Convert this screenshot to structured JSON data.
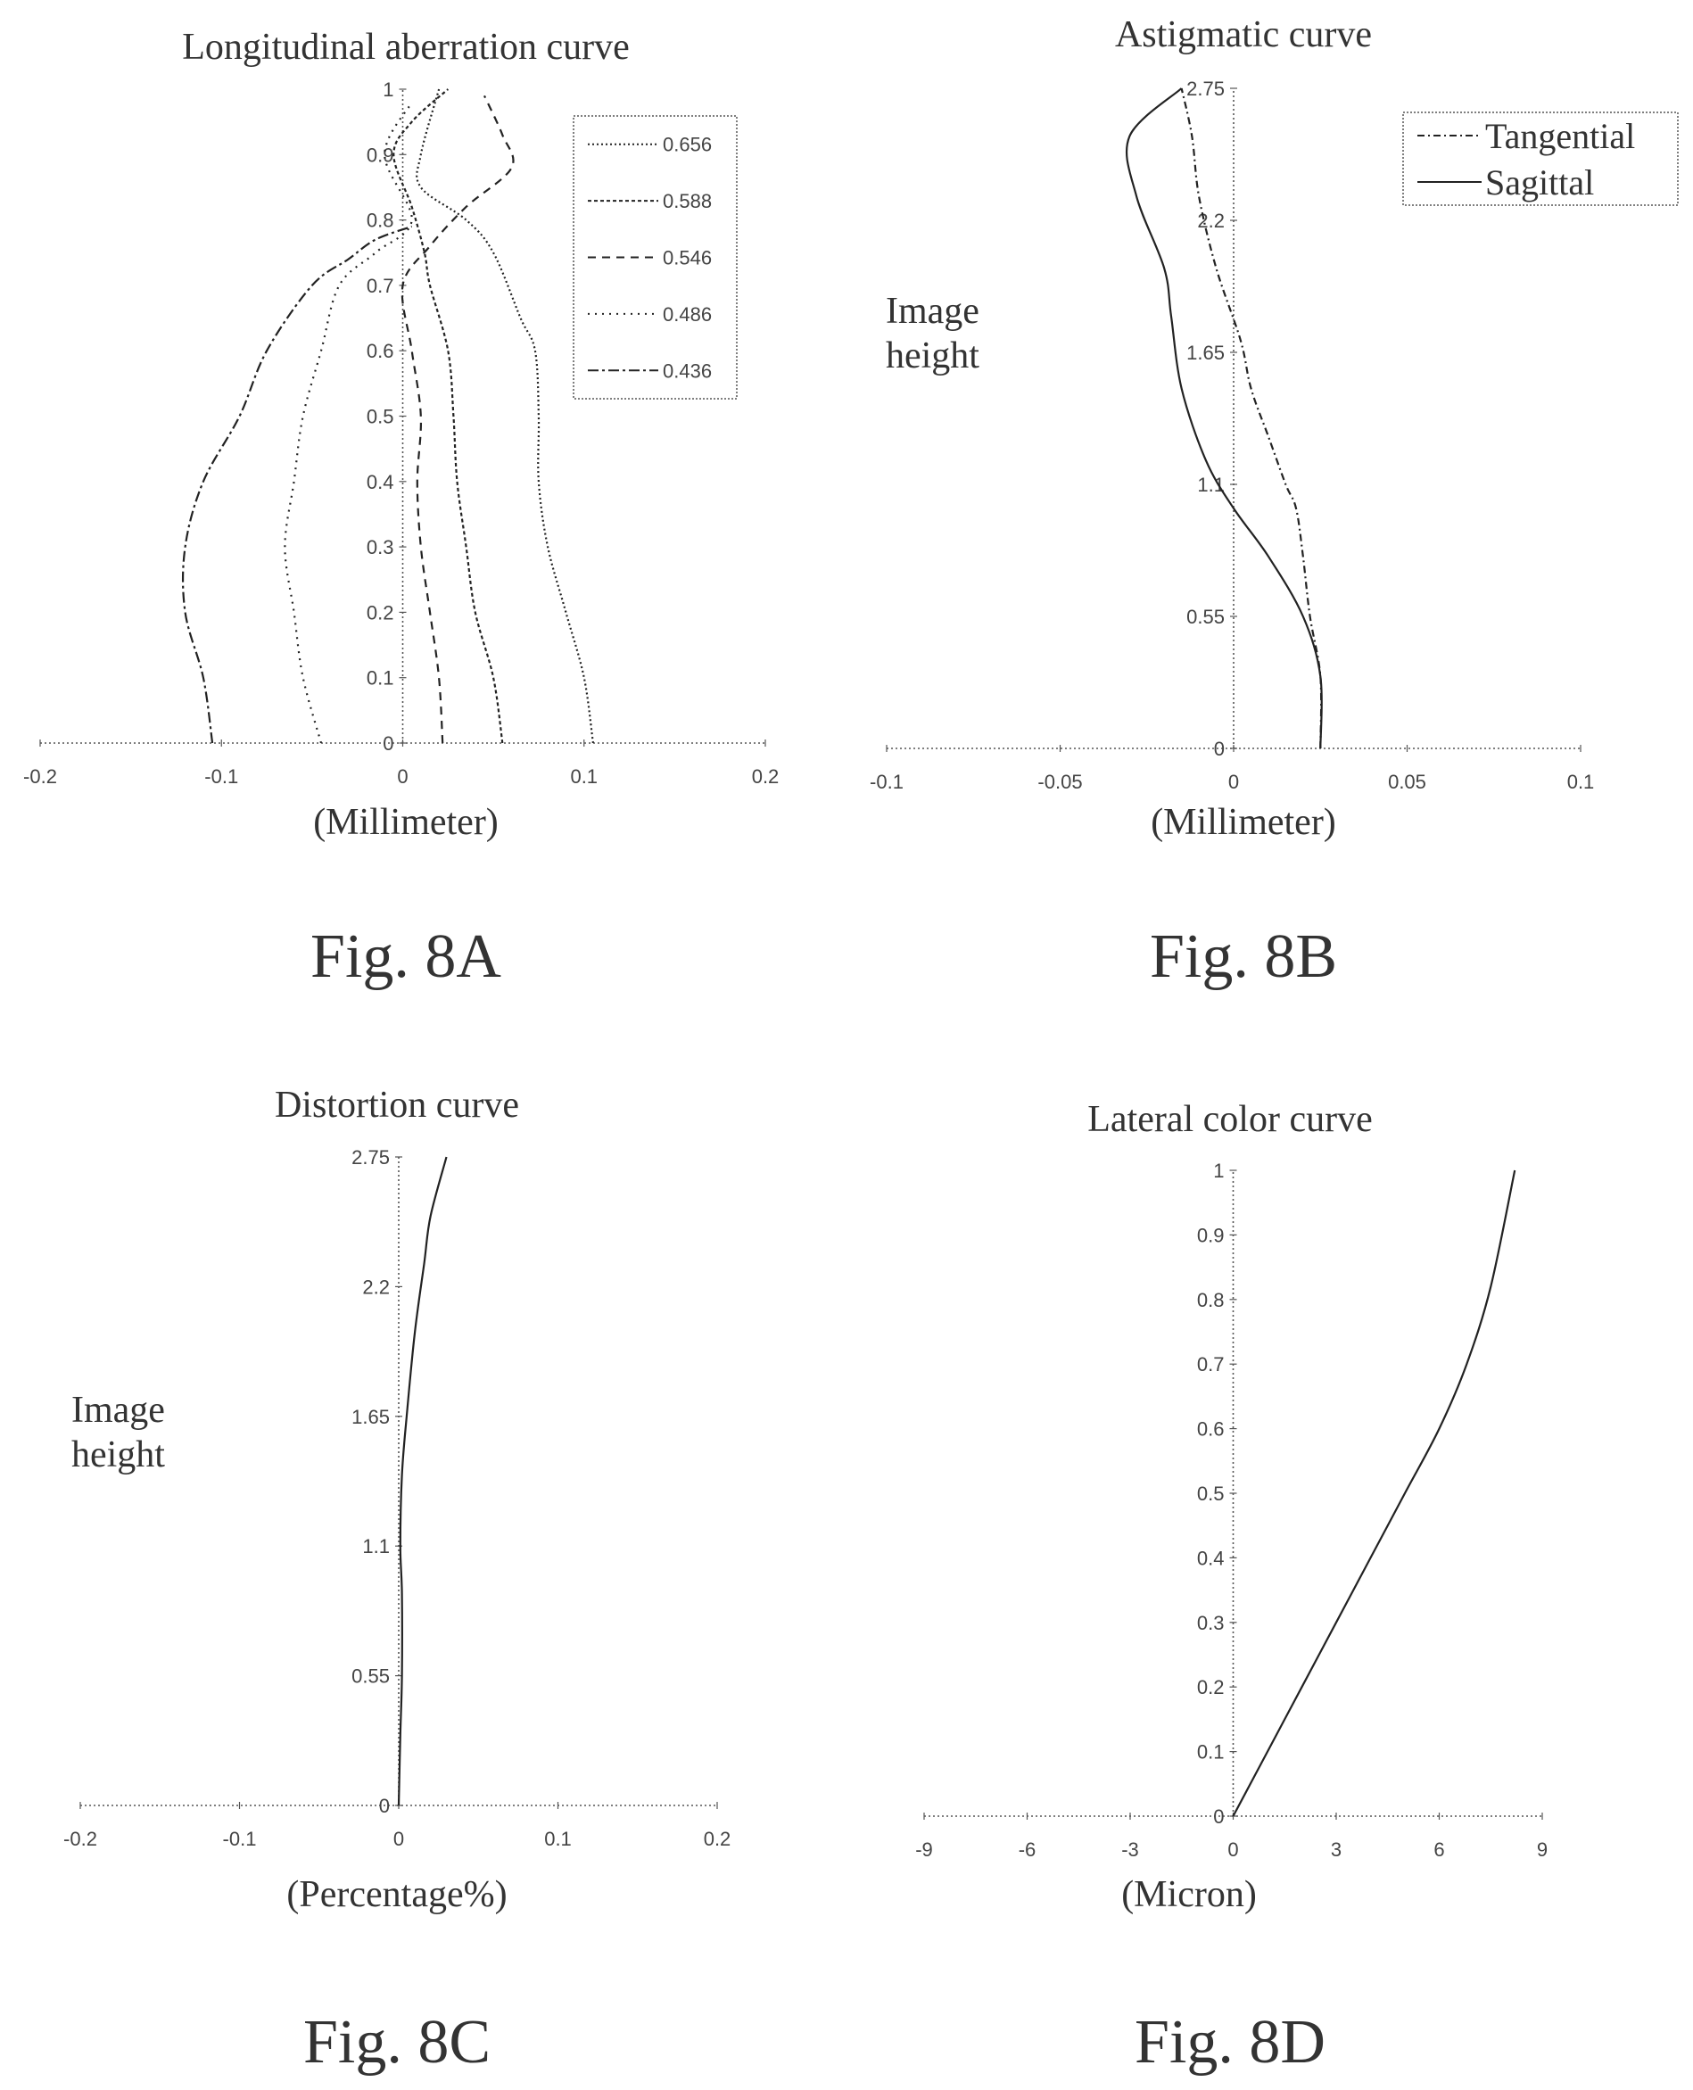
{
  "chart_data": [
    {
      "figure": "Fig. 8A",
      "type": "line",
      "title": "Longitudinal aberration curve",
      "xlabel": "(Millimeter)",
      "ylabel": "",
      "xlim": [
        -0.2,
        0.2
      ],
      "ylim": [
        0,
        1
      ],
      "xticks": [
        "-0.2",
        "-0.1",
        "0",
        "0.1",
        "0.2"
      ],
      "yticks": [
        "0",
        "0.1",
        "0.2",
        "0.3",
        "0.4",
        "0.5",
        "0.6",
        "0.7",
        "0.8",
        "0.9",
        "1"
      ],
      "legend_position": "top-right",
      "series": [
        {
          "name": "0.656",
          "dash": "2 3",
          "x": [
            0.105,
            0.1,
            0.09,
            0.08,
            0.075,
            0.075,
            0.073,
            0.065,
            0.05,
            0.035,
            0.01,
            0.01,
            0.02
          ],
          "y": [
            0,
            0.1,
            0.2,
            0.3,
            0.4,
            0.5,
            0.6,
            0.65,
            0.75,
            0.8,
            0.85,
            0.9,
            1
          ]
        },
        {
          "name": "0.588",
          "dash": "4 3",
          "x": [
            0.055,
            0.05,
            0.04,
            0.035,
            0.03,
            0.028,
            0.025,
            0.015,
            0.012,
            0.005,
            -0.005,
            0.005,
            0.025
          ],
          "y": [
            0,
            0.1,
            0.2,
            0.3,
            0.4,
            0.5,
            0.6,
            0.7,
            0.75,
            0.82,
            0.9,
            0.95,
            1
          ]
        },
        {
          "name": "0.546",
          "dash": "9 7",
          "x": [
            0.022,
            0.02,
            0.015,
            0.01,
            0.008,
            0.01,
            0.005,
            0.0,
            0.015,
            0.035,
            0.06,
            0.055,
            0.045
          ],
          "y": [
            0,
            0.1,
            0.2,
            0.3,
            0.4,
            0.5,
            0.6,
            0.7,
            0.76,
            0.82,
            0.88,
            0.93,
            0.99
          ]
        },
        {
          "name": "0.486",
          "dash": "2 6",
          "x": [
            -0.045,
            -0.055,
            -0.06,
            -0.065,
            -0.06,
            -0.055,
            -0.045,
            -0.035,
            -0.015,
            0.005,
            -0.01,
            0.005
          ],
          "y": [
            0,
            0.1,
            0.2,
            0.3,
            0.4,
            0.5,
            0.6,
            0.7,
            0.75,
            0.8,
            0.9,
            0.98
          ]
        },
        {
          "name": "0.436",
          "dash": "12 4 3 4",
          "x": [
            -0.105,
            -0.11,
            -0.12,
            -0.12,
            -0.11,
            -0.09,
            -0.075,
            -0.05,
            -0.03,
            -0.015,
            0.005
          ],
          "y": [
            0,
            0.1,
            0.2,
            0.3,
            0.4,
            0.5,
            0.6,
            0.7,
            0.74,
            0.77,
            0.79
          ]
        }
      ]
    },
    {
      "figure": "Fig. 8B",
      "type": "line",
      "title": "Astigmatic curve",
      "xlabel": "(Millimeter)",
      "ylabel": "Image height",
      "xlim": [
        -0.1,
        0.1
      ],
      "ylim": [
        0,
        2.75
      ],
      "xticks": [
        "-0.1",
        "-0.05",
        "0",
        "0.05",
        "0.1"
      ],
      "yticks": [
        "0",
        "0.55",
        "1.1",
        "1.65",
        "2.2",
        "2.75"
      ],
      "legend_position": "top-right",
      "series": [
        {
          "name": "Tangential",
          "dash": "8 4 2 4",
          "x": [
            0.025,
            0.025,
            0.022,
            0.02,
            0.018,
            0.015,
            0.01,
            0.005,
            0.002,
            -0.005,
            -0.01,
            -0.012,
            -0.015
          ],
          "y": [
            0,
            0.3,
            0.55,
            0.8,
            1.0,
            1.1,
            1.3,
            1.5,
            1.7,
            2.0,
            2.3,
            2.55,
            2.75
          ]
        },
        {
          "name": "Sagittal",
          "dash": "",
          "x": [
            0.025,
            0.025,
            0.02,
            0.01,
            0.0,
            -0.008,
            -0.015,
            -0.018,
            -0.02,
            -0.028,
            -0.03,
            -0.015
          ],
          "y": [
            0,
            0.3,
            0.55,
            0.8,
            1.0,
            1.2,
            1.5,
            1.8,
            2.0,
            2.3,
            2.55,
            2.75
          ]
        }
      ]
    },
    {
      "figure": "Fig. 8C",
      "type": "line",
      "title": "Distortion curve",
      "xlabel": "(Percentage%)",
      "ylabel": "Image height",
      "xlim": [
        -0.2,
        0.2
      ],
      "ylim": [
        0,
        2.75
      ],
      "xticks": [
        "-0.2",
        "-0.1",
        "0",
        "0.1",
        "0.2"
      ],
      "yticks": [
        "0",
        "0.55",
        "1.1",
        "1.65",
        "2.2",
        "2.75"
      ],
      "series": [
        {
          "name": "",
          "dash": "",
          "x": [
            0,
            0.001,
            0.002,
            0.002,
            0.001,
            0.002,
            0.005,
            0.01,
            0.016,
            0.02,
            0.03
          ],
          "y": [
            0,
            0.3,
            0.55,
            0.9,
            1.1,
            1.4,
            1.65,
            2.0,
            2.3,
            2.5,
            2.75
          ]
        }
      ]
    },
    {
      "figure": "Fig. 8D",
      "type": "line",
      "title": "Lateral color curve",
      "xlabel": "(Micron)",
      "ylabel": "",
      "xlim": [
        -9,
        9
      ],
      "ylim": [
        0,
        1
      ],
      "xticks": [
        "-9",
        "-6",
        "-3",
        "0",
        "3",
        "6",
        "9"
      ],
      "yticks": [
        "0",
        "0.1",
        "0.2",
        "0.3",
        "0.4",
        "0.5",
        "0.6",
        "0.7",
        "0.8",
        "0.9",
        "1"
      ],
      "series": [
        {
          "name": "",
          "dash": "",
          "x": [
            0,
            1.0,
            2.0,
            3.0,
            4.0,
            5.0,
            6.0,
            6.8,
            7.5,
            8.2
          ],
          "y": [
            0,
            0.1,
            0.2,
            0.3,
            0.4,
            0.5,
            0.6,
            0.7,
            0.82,
            1.0
          ]
        }
      ]
    }
  ]
}
